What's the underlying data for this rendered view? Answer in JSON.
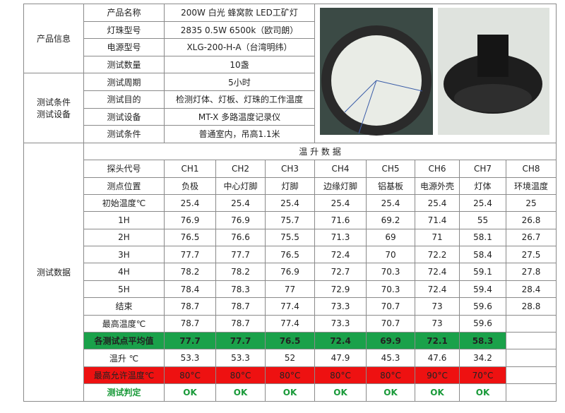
{
  "info": {
    "section1_label": "产品信息",
    "rows1": [
      [
        "产品名称",
        "200W 白光 蜂窝款 LED工矿灯"
      ],
      [
        "灯珠型号",
        "2835 0.5W 6500k（欧司朗）"
      ],
      [
        "电源型号",
        "XLG-200-H-A（台湾明纬）"
      ],
      [
        "测试数量",
        "10盏"
      ]
    ],
    "section2_label": [
      "测试条件",
      "测试设备"
    ],
    "rows2": [
      [
        "测试周期",
        "5小时"
      ],
      [
        "测试目的",
        "检测灯体、灯板、灯珠的工作温度"
      ],
      [
        "测试设备",
        "MT-X  多路温度记录仪"
      ],
      [
        "测试条件",
        "普通室内，吊高1.1米"
      ]
    ]
  },
  "data_section": {
    "label": "测试数据",
    "title": "温 升 数 据",
    "rows": [
      [
        "探头代号",
        "CH1",
        "CH2",
        "CH3",
        "CH4",
        "CH5",
        "CH6",
        "CH7",
        "CH8"
      ],
      [
        "测点位置",
        "负极",
        "中心灯脚",
        "灯脚",
        "边缘灯脚",
        "铝基板",
        "电源外壳",
        "灯体",
        "环境温度"
      ],
      [
        "初始温度℃",
        25.4,
        25.4,
        25.4,
        25.4,
        25.4,
        25.4,
        25.4,
        25
      ],
      [
        "1H",
        76.9,
        76.9,
        75.7,
        71.6,
        69.2,
        71.4,
        55,
        26.8
      ],
      [
        "2H",
        76.5,
        76.6,
        75.5,
        71.3,
        69,
        71,
        58.1,
        26.7
      ],
      [
        "3H",
        77.7,
        77.7,
        76.5,
        72.4,
        70,
        72.2,
        58.4,
        27.5
      ],
      [
        "4H",
        78.2,
        78.2,
        76.9,
        72.7,
        70.3,
        72.4,
        59.1,
        27.8
      ],
      [
        "5H",
        78.4,
        78.3,
        77,
        72.9,
        70.3,
        72.4,
        59.4,
        28.4
      ],
      [
        "结束",
        78.7,
        78.7,
        77.4,
        73.3,
        70.7,
        73,
        59.6,
        28.8
      ],
      [
        "最高温度℃",
        78.7,
        78.7,
        77.4,
        73.3,
        70.7,
        73,
        59.6
      ],
      [
        "各测试点平均值",
        77.7,
        77.7,
        76.5,
        72.4,
        69.9,
        72.1,
        58.3
      ],
      [
        "温升 ℃",
        53.3,
        53.3,
        52,
        47.9,
        45.3,
        47.6,
        34.2
      ],
      [
        "最高允许温度℃",
        "80°C",
        "80°C",
        "80°C",
        "80°C",
        "80°C",
        "90°C",
        "70°C"
      ],
      [
        "测试判定",
        "OK",
        "OK",
        "OK",
        "OK",
        "OK",
        "OK",
        "OK"
      ]
    ]
  }
}
